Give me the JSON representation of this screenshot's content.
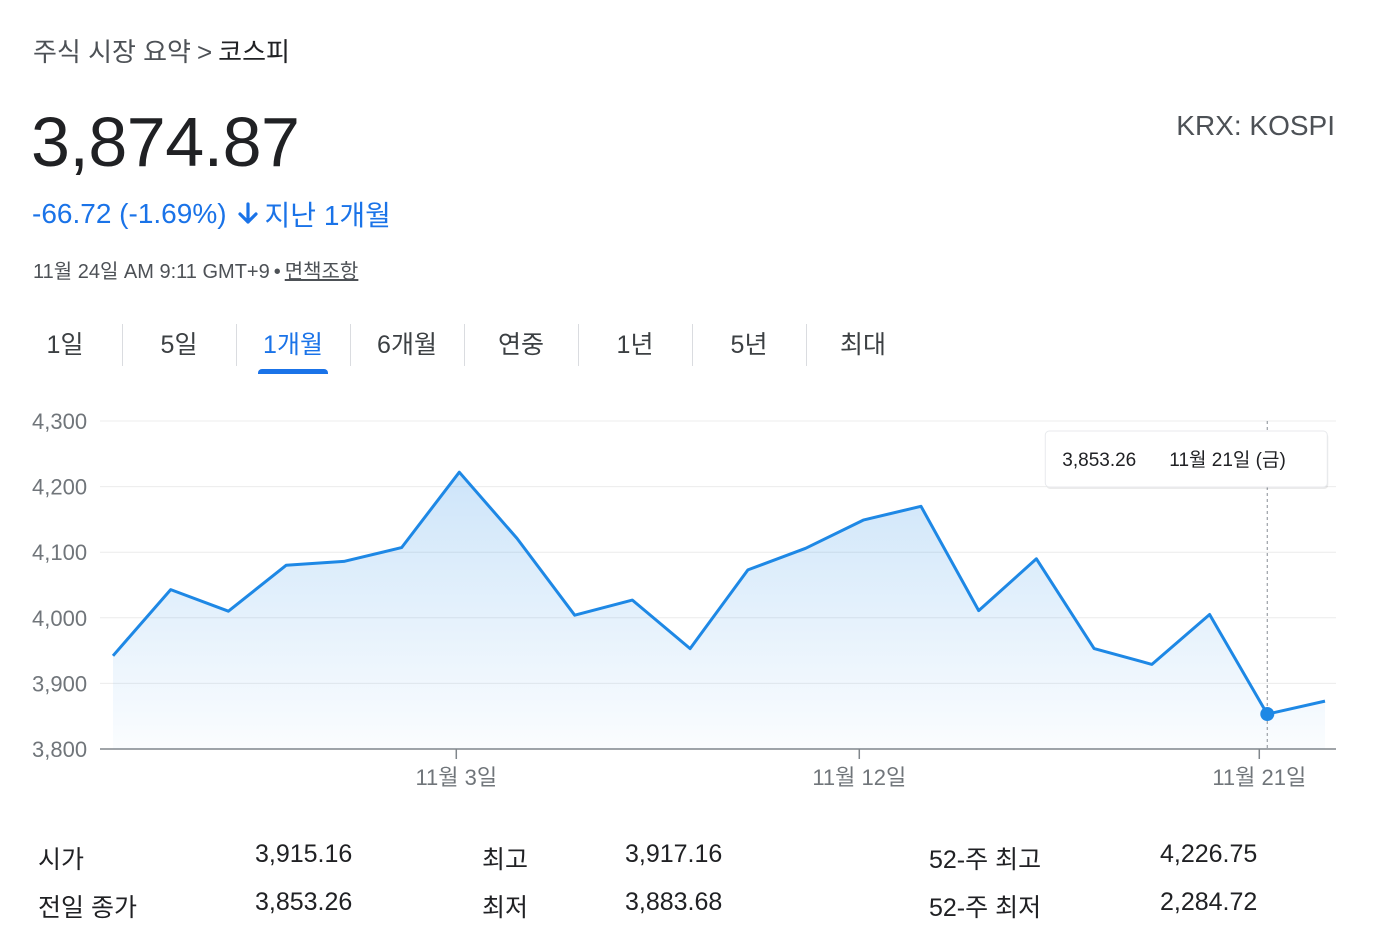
{
  "breadcrumb": {
    "root": "주식 시장 요약",
    "separator": ">",
    "current": "코스피"
  },
  "price": "3,874.87",
  "ticker": "KRX: KOSPI",
  "change": {
    "value": "-66.72 (-1.69%)",
    "direction_icon": "arrow-down-icon",
    "period": "지난 1개월",
    "color": "#1a73e8"
  },
  "timestamp": {
    "text": "11월 24일 AM 9:11 GMT+9",
    "bullet": "•",
    "disclaimer": "면책조항"
  },
  "tabs": [
    {
      "label": "1일",
      "active": false
    },
    {
      "label": "5일",
      "active": false
    },
    {
      "label": "1개월",
      "active": true
    },
    {
      "label": "6개월",
      "active": false
    },
    {
      "label": "연중",
      "active": false
    },
    {
      "label": "1년",
      "active": false
    },
    {
      "label": "5년",
      "active": false
    },
    {
      "label": "최대",
      "active": false
    }
  ],
  "chart_data": {
    "type": "line",
    "ylim": [
      3800,
      4300
    ],
    "yticks": [
      "4,300",
      "4,200",
      "4,100",
      "4,000",
      "3,900",
      "3,800"
    ],
    "ytick_values": [
      4300,
      4200,
      4100,
      4000,
      3900,
      3800
    ],
    "xticks": [
      {
        "label": "11월 3일",
        "index": 6
      },
      {
        "label": "11월 12일",
        "index": 13
      },
      {
        "label": "11월 21일",
        "index": 20
      }
    ],
    "grid": true,
    "line_color": "#1e88e5",
    "values": [
      3942,
      4043,
      4010,
      4080,
      4086,
      4107,
      4222,
      4121,
      4004,
      4027,
      3953,
      4073,
      4106,
      4149,
      4170,
      4011,
      4090,
      3953,
      3929,
      4005,
      3853.26,
      3873
    ],
    "hover": {
      "index": 20,
      "value": "3,853.26",
      "date": "11월 21일 (금)"
    }
  },
  "stats": [
    {
      "label1": "시가",
      "value1": "3,915.16",
      "label2": "최고",
      "value2": "3,917.16",
      "label3": "52-주 최고",
      "value3": "4,226.75"
    },
    {
      "label1": "전일 종가",
      "value1": "3,853.26",
      "label2": "최저",
      "value2": "3,883.68",
      "label3": "52-주 최저",
      "value3": "2,284.72"
    }
  ]
}
